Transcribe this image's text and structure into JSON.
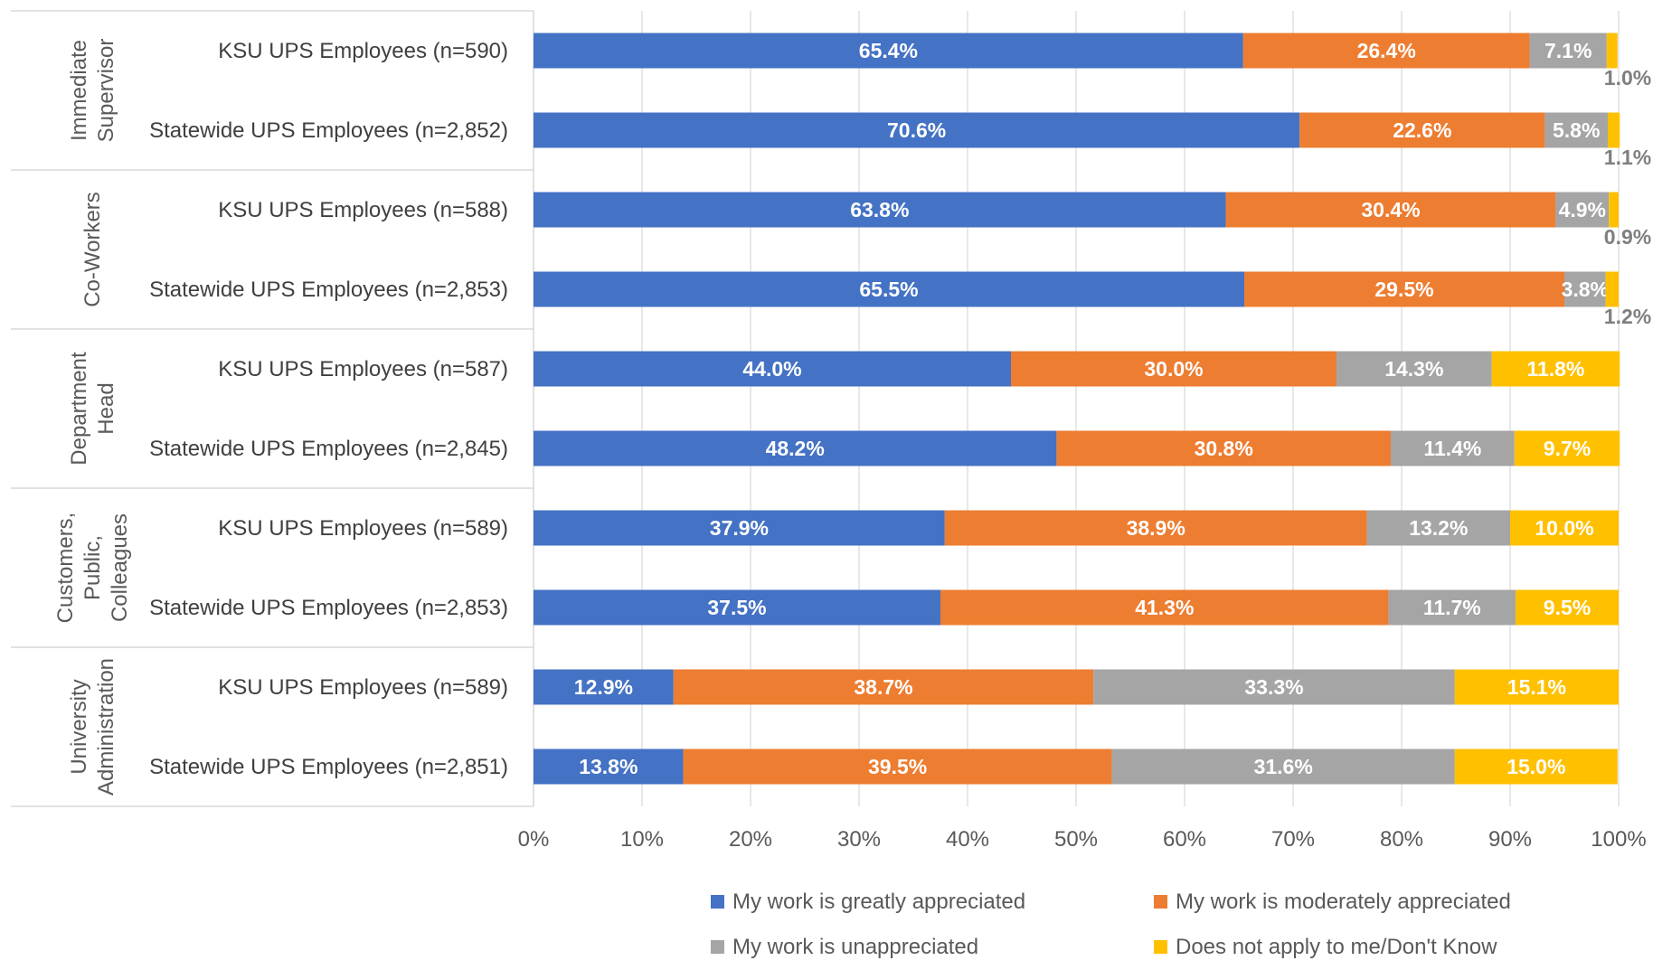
{
  "chart_data": {
    "type": "bar",
    "orientation": "horizontal",
    "stacked": "100%",
    "title": "",
    "xlabel": "",
    "ylabel": "",
    "xlim": [
      0,
      100
    ],
    "x_ticks": [
      "0%",
      "10%",
      "20%",
      "30%",
      "40%",
      "50%",
      "60%",
      "70%",
      "80%",
      "90%",
      "100%"
    ],
    "grid": "vertical",
    "legend_position": "bottom",
    "groups": [
      {
        "label": "Immediate Supervisor",
        "label_lines": [
          "Immediate",
          "Supervisor"
        ],
        "rows": [
          {
            "label": "KSU UPS Employees (n=590)",
            "values": [
              65.4,
              26.4,
              7.1,
              1.0
            ],
            "labels": [
              "65.4%",
              "26.4%",
              "7.1%",
              "1.0%"
            ]
          },
          {
            "label": "Statewide UPS Employees (n=2,852)",
            "values": [
              70.6,
              22.6,
              5.8,
              1.1
            ],
            "labels": [
              "70.6%",
              "22.6%",
              "5.8%",
              "1.1%"
            ]
          }
        ]
      },
      {
        "label": "Co-Workers",
        "label_lines": [
          "Co-Workers"
        ],
        "rows": [
          {
            "label": "KSU UPS Employees (n=588)",
            "values": [
              63.8,
              30.4,
              4.9,
              0.9
            ],
            "labels": [
              "63.8%",
              "30.4%",
              "4.9%",
              "0.9%"
            ]
          },
          {
            "label": "Statewide UPS Employees (n=2,853)",
            "values": [
              65.5,
              29.5,
              3.8,
              1.2
            ],
            "labels": [
              "65.5%",
              "29.5%",
              "3.8%",
              "1.2%"
            ]
          }
        ]
      },
      {
        "label": "Department Head",
        "label_lines": [
          "Department",
          "Head"
        ],
        "rows": [
          {
            "label": "KSU UPS Employees (n=587)",
            "values": [
              44.0,
              30.0,
              14.3,
              11.8
            ],
            "labels": [
              "44.0%",
              "30.0%",
              "14.3%",
              "11.8%"
            ]
          },
          {
            "label": "Statewide UPS Employees (n=2,845)",
            "values": [
              48.2,
              30.8,
              11.4,
              9.7
            ],
            "labels": [
              "48.2%",
              "30.8%",
              "11.4%",
              "9.7%"
            ]
          }
        ]
      },
      {
        "label": "Customers, Public, Colleagues",
        "label_lines": [
          "Customers,",
          "Public,",
          "Colleagues"
        ],
        "rows": [
          {
            "label": "KSU UPS Employees (n=589)",
            "values": [
              37.9,
              38.9,
              13.2,
              10.0
            ],
            "labels": [
              "37.9%",
              "38.9%",
              "13.2%",
              "10.0%"
            ]
          },
          {
            "label": "Statewide UPS Employees (n=2,853)",
            "values": [
              37.5,
              41.3,
              11.7,
              9.5
            ],
            "labels": [
              "37.5%",
              "41.3%",
              "11.7%",
              "9.5%"
            ]
          }
        ]
      },
      {
        "label": "University Administration",
        "label_lines": [
          "University",
          "Administration"
        ],
        "rows": [
          {
            "label": "KSU UPS Employees (n=589)",
            "values": [
              12.9,
              38.7,
              33.3,
              15.1
            ],
            "labels": [
              "12.9%",
              "38.7%",
              "33.3%",
              "15.1%"
            ]
          },
          {
            "label": "Statewide UPS Employees (n=2,851)",
            "values": [
              13.8,
              39.5,
              31.6,
              15.0
            ],
            "labels": [
              "13.8%",
              "39.5%",
              "31.6%",
              "15.0%"
            ]
          }
        ]
      }
    ],
    "series": [
      {
        "name": "My work is greatly appreciated",
        "color": "#4472C4"
      },
      {
        "name": "My work is moderately appreciated",
        "color": "#ED7D31"
      },
      {
        "name": "My work is unappreciated",
        "color": "#A5A5A5"
      },
      {
        "name": "Does not apply to me/Don't Know",
        "color": "#FFC000"
      }
    ]
  }
}
